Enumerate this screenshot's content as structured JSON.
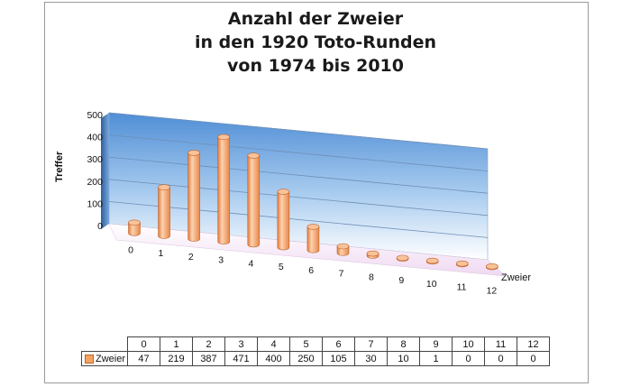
{
  "chart_data": {
    "type": "bar",
    "title": [
      "Anzahl der Zweier",
      "in den 1920 Toto-Runden",
      "von 1974 bis 2010"
    ],
    "ylabel": "Treffer",
    "xlabel": "Zweier",
    "categories": [
      "0",
      "1",
      "2",
      "3",
      "4",
      "5",
      "6",
      "7",
      "8",
      "9",
      "10",
      "11",
      "12"
    ],
    "series": [
      {
        "name": "Zweier",
        "values": [
          47,
          219,
          387,
          471,
          400,
          250,
          105,
          30,
          10,
          1,
          0,
          0,
          0
        ]
      }
    ],
    "yticks": [
      "0",
      "100",
      "200",
      "300",
      "400",
      "500"
    ],
    "ylim": [
      0,
      500
    ],
    "grid": true,
    "legend": "table",
    "colors": {
      "bar_fill": "#f4a460",
      "bar_light": "#fcd5b4",
      "bar_dark": "#d9733a",
      "wall_top": "#5b9bd5",
      "wall_bottom": "#ffffff",
      "floor": "#f2e6f5"
    }
  }
}
